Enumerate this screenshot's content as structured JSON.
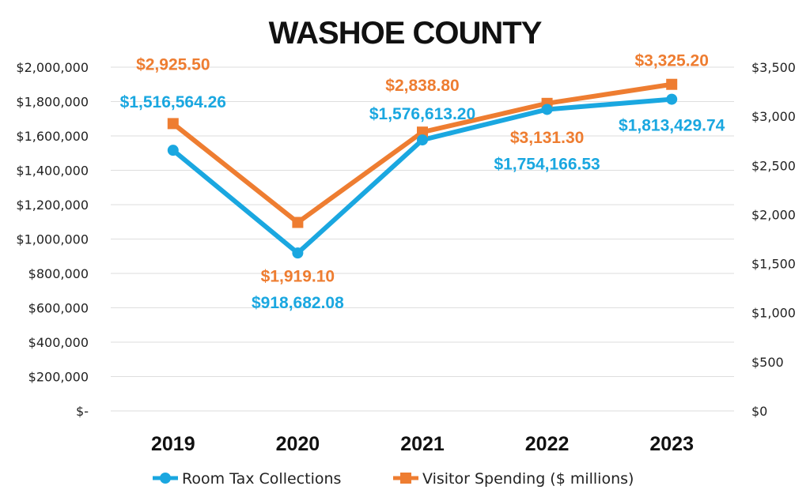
{
  "chart_data": {
    "type": "line",
    "title": "WASHOE COUNTY",
    "categories": [
      "2019",
      "2020",
      "2021",
      "2022",
      "2023"
    ],
    "y_left": {
      "ylim": [
        0,
        2000000
      ],
      "ticks": [
        "$-",
        "$200,000",
        "$400,000",
        "$600,000",
        "$800,000",
        "$1,000,000",
        "$1,200,000",
        "$1,400,000",
        "$1,600,000",
        "$1,800,000",
        "$2,000,000"
      ]
    },
    "y_right": {
      "ylim": [
        0,
        3500
      ],
      "ticks": [
        "$0",
        "$500",
        "$1,000",
        "$1,500",
        "$2,000",
        "$2,500",
        "$3,000",
        "$3,500"
      ]
    },
    "grid": true,
    "legend_position": "bottom",
    "series": [
      {
        "name": "Room Tax Collections",
        "axis": "left",
        "color": "#1aa7e0",
        "marker": "circle",
        "values": [
          1516564.26,
          918682.08,
          1576613.2,
          1754166.53,
          1813429.74
        ],
        "labels": [
          "$1,516,564.26",
          "$918,682.08",
          "$1,576,613.20",
          "$1,754,166.53",
          "$1,813,429.74"
        ]
      },
      {
        "name": "Visitor Spending ($ millions)",
        "axis": "right",
        "color": "#ee7d31",
        "marker": "square",
        "values": [
          2925.5,
          1919.1,
          2838.8,
          3131.3,
          3325.2
        ],
        "labels": [
          "$2,925.50",
          "$1,919.10",
          "$2,838.80",
          "$3,131.30",
          "$3,325.20"
        ]
      }
    ]
  }
}
